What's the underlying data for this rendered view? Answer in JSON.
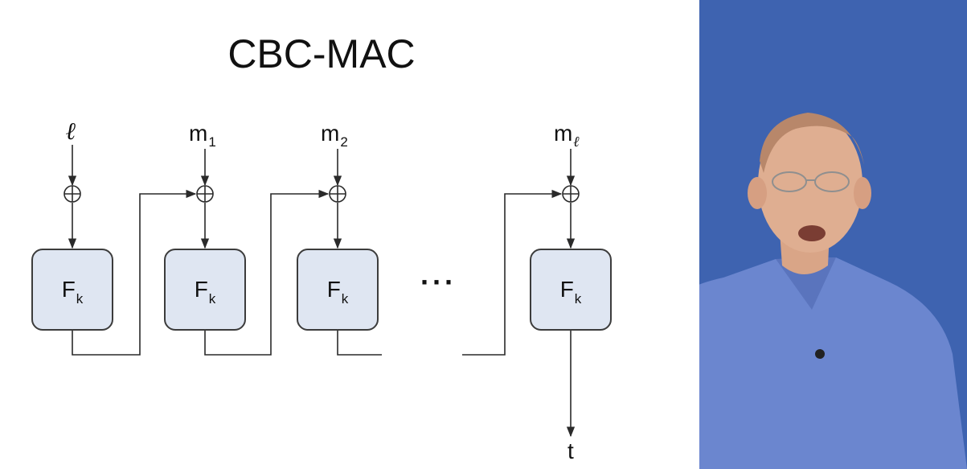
{
  "title": "CBC-MAC",
  "inputs": {
    "length": "ℓ",
    "m1_base": "m",
    "m1_sub": "1",
    "m2_base": "m",
    "m2_sub": "2",
    "ml_base": "m",
    "ml_sub": "ℓ"
  },
  "block_label": {
    "base": "F",
    "sub": "k"
  },
  "ellipsis": "···",
  "output": "t",
  "colors": {
    "block_fill": "#dfe6f2",
    "block_border": "#3c3c3c",
    "line": "#2a2a2a",
    "presenter_background": "#3e63b0"
  }
}
